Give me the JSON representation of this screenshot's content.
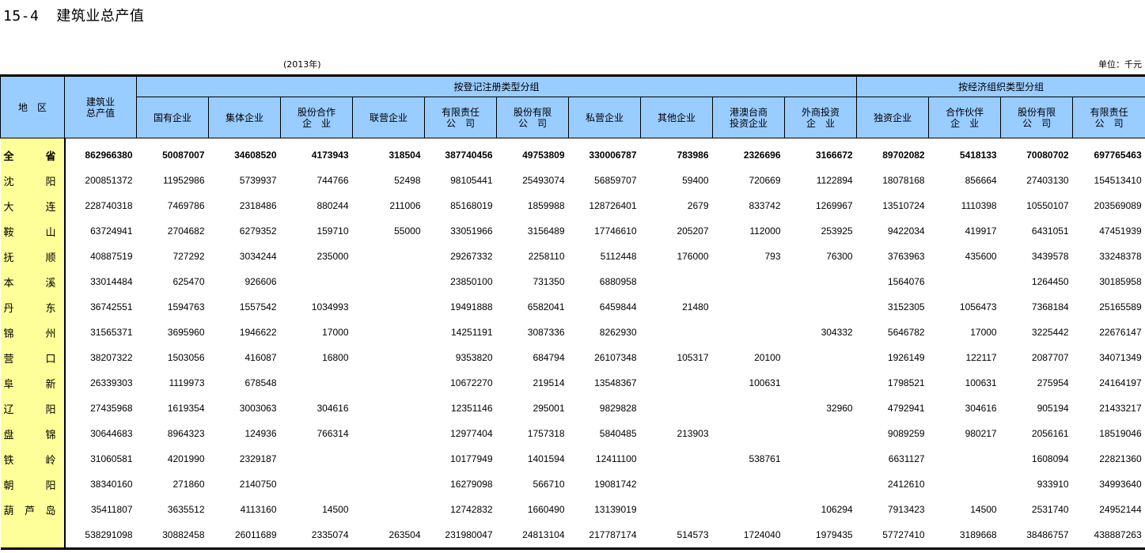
{
  "title": {
    "number": "15-4",
    "text": "建筑业总产值"
  },
  "year_note": "(2013年)",
  "unit_note": "单位：千元",
  "header": {
    "region": "地　区",
    "total": [
      "建筑业",
      "总产值"
    ],
    "group_registration": "按登记注册类型分组",
    "group_economic": "按经济组织类型分组",
    "columns": [
      [
        "国有企业"
      ],
      [
        "集体企业"
      ],
      [
        "股份合作",
        "企　业"
      ],
      [
        "联营企业"
      ],
      [
        "有限责任",
        "公　司"
      ],
      [
        "股份有限",
        "公　司"
      ],
      [
        "私营企业"
      ],
      [
        "其他企业"
      ],
      [
        "港澳台商",
        "投资企业"
      ],
      [
        "外商投资",
        "企　业"
      ],
      [
        "独资企业"
      ],
      [
        "合作伙伴",
        "企　业"
      ],
      [
        "股份有限",
        "公　司"
      ],
      [
        "有限责任",
        "公　司"
      ]
    ]
  },
  "rows": [
    {
      "region": [
        "全",
        "省"
      ],
      "values": [
        "862966380",
        "50087007",
        "34608520",
        "4173943",
        "318504",
        "387740456",
        "49753809",
        "330006787",
        "783986",
        "2326696",
        "3166672",
        "89702082",
        "5418133",
        "70080702",
        "697765463"
      ]
    },
    {
      "region": [
        "沈",
        "阳"
      ],
      "values": [
        "200851372",
        "11952986",
        "5739937",
        "744766",
        "52498",
        "98105441",
        "25493074",
        "56859707",
        "59400",
        "720669",
        "1122894",
        "18078168",
        "856664",
        "27403130",
        "154513410"
      ]
    },
    {
      "region": [
        "大",
        "连"
      ],
      "values": [
        "228740318",
        "7469786",
        "2318486",
        "880244",
        "211006",
        "85168019",
        "1859988",
        "128726401",
        "2679",
        "833742",
        "1269967",
        "13510724",
        "1110398",
        "10550107",
        "203569089"
      ]
    },
    {
      "region": [
        "鞍",
        "山"
      ],
      "values": [
        "63724941",
        "2704682",
        "6279352",
        "159710",
        "55000",
        "33051966",
        "3156489",
        "17746610",
        "205207",
        "112000",
        "253925",
        "9422034",
        "419917",
        "6431051",
        "47451939"
      ]
    },
    {
      "region": [
        "抚",
        "顺"
      ],
      "values": [
        "40887519",
        "727292",
        "3034244",
        "235000",
        "",
        "29267332",
        "2258110",
        "5112448",
        "176000",
        "793",
        "76300",
        "3763963",
        "435600",
        "3439578",
        "33248378"
      ]
    },
    {
      "region": [
        "本",
        "溪"
      ],
      "values": [
        "33014484",
        "625470",
        "926606",
        "",
        "",
        "23850100",
        "731350",
        "6880958",
        "",
        "",
        "",
        "1564076",
        "",
        "1264450",
        "30185958"
      ]
    },
    {
      "region": [
        "丹",
        "东"
      ],
      "values": [
        "36742551",
        "1594763",
        "1557542",
        "1034993",
        "",
        "19491888",
        "6582041",
        "6459844",
        "21480",
        "",
        "",
        "3152305",
        "1056473",
        "7368184",
        "25165589"
      ]
    },
    {
      "region": [
        "锦",
        "州"
      ],
      "values": [
        "31565371",
        "3695960",
        "1946622",
        "17000",
        "",
        "14251191",
        "3087336",
        "8262930",
        "",
        "",
        "304332",
        "5646782",
        "17000",
        "3225442",
        "22676147"
      ]
    },
    {
      "region": [
        "营",
        "口"
      ],
      "values": [
        "38207322",
        "1503056",
        "416087",
        "16800",
        "",
        "9353820",
        "684794",
        "26107348",
        "105317",
        "20100",
        "",
        "1926149",
        "122117",
        "2087707",
        "34071349"
      ]
    },
    {
      "region": [
        "阜",
        "新"
      ],
      "values": [
        "26339303",
        "1119973",
        "678548",
        "",
        "",
        "10672270",
        "219514",
        "13548367",
        "",
        "100631",
        "",
        "1798521",
        "100631",
        "275954",
        "24164197"
      ]
    },
    {
      "region": [
        "辽",
        "阳"
      ],
      "values": [
        "27435968",
        "1619354",
        "3003063",
        "304616",
        "",
        "12351146",
        "295001",
        "9829828",
        "",
        "",
        "32960",
        "4792941",
        "304616",
        "905194",
        "21433217"
      ]
    },
    {
      "region": [
        "盘",
        "锦"
      ],
      "values": [
        "30644683",
        "8964323",
        "124936",
        "766314",
        "",
        "12977404",
        "1757318",
        "5840485",
        "213903",
        "",
        "",
        "9089259",
        "980217",
        "2056161",
        "18519046"
      ]
    },
    {
      "region": [
        "铁",
        "岭"
      ],
      "values": [
        "31060581",
        "4201990",
        "2329187",
        "",
        "",
        "10177949",
        "1401594",
        "12411100",
        "",
        "538761",
        "",
        "6631127",
        "",
        "1608094",
        "22821360"
      ]
    },
    {
      "region": [
        "朝",
        "阳"
      ],
      "values": [
        "38340160",
        "271860",
        "2140750",
        "",
        "",
        "16279098",
        "566710",
        "19081742",
        "",
        "",
        "",
        "2412610",
        "",
        "933910",
        "34993640"
      ]
    },
    {
      "region": [
        "葫",
        "芦",
        "岛"
      ],
      "values": [
        "35411807",
        "3635512",
        "4113160",
        "14500",
        "",
        "12742832",
        "1660490",
        "13139019",
        "",
        "",
        "106294",
        "7913423",
        "14500",
        "2531740",
        "24952144"
      ]
    },
    {
      "region": [],
      "values": [
        "538291098",
        "30882458",
        "26011689",
        "2335074",
        "263504",
        "231980047",
        "24813104",
        "217787174",
        "514573",
        "1724040",
        "1979435",
        "57727410",
        "3189668",
        "38486757",
        "438887263"
      ]
    }
  ],
  "colors": {
    "header_bg": "#99ccff",
    "region_bg": "#ffff99"
  }
}
